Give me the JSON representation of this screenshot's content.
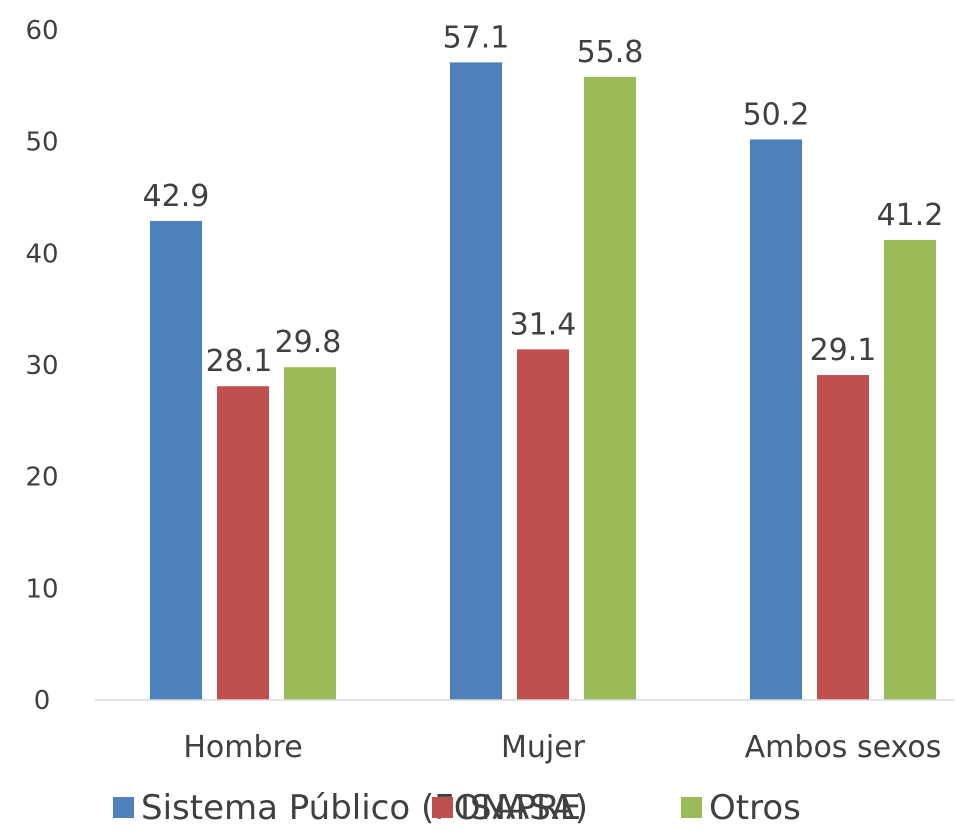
{
  "chart_data": {
    "type": "bar",
    "title": "",
    "xlabel": "",
    "ylabel": "",
    "ylim": [
      0,
      60
    ],
    "yticks": [
      0,
      10,
      20,
      30,
      40,
      50,
      60
    ],
    "grid": false,
    "legend_position": "bottom",
    "categories": [
      "Hombre",
      "Mujer",
      "Ambos sexos"
    ],
    "series": [
      {
        "name": "Sistema Público (FONASA)",
        "color": "#4F81BD",
        "values": [
          42.9,
          57.1,
          50.2
        ]
      },
      {
        "name": "ISAPRE",
        "color": "#C0504D",
        "values": [
          28.1,
          31.4,
          29.1
        ]
      },
      {
        "name": "Otros",
        "color": "#9BBB59",
        "values": [
          29.8,
          55.8,
          41.2
        ]
      }
    ]
  }
}
